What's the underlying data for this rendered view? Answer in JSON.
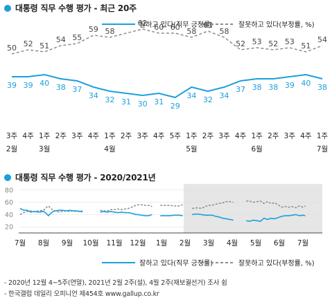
{
  "colors": {
    "approve": "#1a9fdc",
    "disapprove": "#8c8c8c",
    "accent": "#1a9fdc",
    "shade": "#e6e6e6"
  },
  "chart_data": [
    {
      "type": "line",
      "title": "대통령 직무 수행 평가 - 최근 20주",
      "categories": [
        "3주",
        "4주",
        "1주",
        "2주",
        "3주",
        "4주",
        "1주",
        "2주",
        "3주",
        "4주",
        "5주",
        "1주",
        "2주",
        "3주",
        "4주",
        "1주",
        "2주",
        "3주",
        "4주",
        "1주"
      ],
      "month_labels": [
        {
          "index": 0,
          "label": "2월"
        },
        {
          "index": 2,
          "label": "3월"
        },
        {
          "index": 6,
          "label": "4월"
        },
        {
          "index": 11,
          "label": "5월"
        },
        {
          "index": 15,
          "label": "6월"
        },
        {
          "index": 19,
          "label": "7월"
        }
      ],
      "series": [
        {
          "name": "잘하고 있다(직무 긍정률)",
          "values": [
            39,
            39,
            40,
            38,
            37,
            34,
            32,
            31,
            30,
            31,
            29,
            34,
            32,
            34,
            37,
            38,
            38,
            39,
            40,
            38
          ]
        },
        {
          "name": "잘못하고 있다(부정률, %)",
          "values": [
            50,
            52,
            51,
            54,
            55,
            59,
            58,
            null,
            62,
            60,
            60,
            58,
            61,
            58,
            52,
            53,
            52,
            53,
            51,
            54
          ]
        }
      ],
      "ylim": [
        20,
        70
      ],
      "legend": "top-right"
    },
    {
      "type": "line",
      "title": "대통령 직무 수행 평가 - 2020/2021년",
      "x_ticks": [
        "7월",
        "8월",
        "9월",
        "10월",
        "11월",
        "12월",
        "1월",
        "2월",
        "3월",
        "4월",
        "5월",
        "6월",
        "7월"
      ],
      "y_ticks": [
        20,
        40,
        60,
        80
      ],
      "ylim": [
        10,
        90
      ],
      "shaded_from_tick": 7,
      "approve_segments": [
        [
          [
            0,
            50
          ],
          [
            0.15,
            47
          ],
          [
            0.3,
            47
          ],
          [
            0.45,
            44
          ],
          [
            0.6,
            45
          ],
          [
            0.8,
            44
          ],
          [
            1.0,
            45
          ],
          [
            1.1,
            42
          ],
          [
            1.2,
            38
          ],
          [
            1.3,
            42
          ],
          [
            1.4,
            45
          ],
          [
            1.5,
            46
          ],
          [
            1.65,
            47
          ],
          [
            1.8,
            47
          ],
          [
            1.95,
            46
          ],
          [
            2.1,
            47
          ],
          [
            2.25,
            46
          ],
          [
            2.4,
            46
          ],
          [
            2.55,
            45
          ],
          [
            2.65,
            46
          ]
        ],
        [
          [
            3.4,
            44
          ],
          [
            3.55,
            45
          ],
          [
            3.7,
            44
          ],
          [
            3.85,
            45
          ],
          [
            4.0,
            44
          ],
          [
            4.15,
            43
          ],
          [
            4.3,
            44
          ],
          [
            4.45,
            43
          ],
          [
            4.6,
            43
          ],
          [
            4.75,
            42
          ],
          [
            4.9,
            40
          ],
          [
            5.0,
            40
          ],
          [
            5.15,
            39
          ],
          [
            5.3,
            38
          ],
          [
            5.45,
            38
          ],
          [
            5.6,
            40
          ]
        ],
        [
          [
            5.95,
            38
          ],
          [
            6.15,
            38
          ],
          [
            6.35,
            38
          ],
          [
            6.55,
            39
          ],
          [
            6.75,
            39
          ],
          [
            6.9,
            38
          ]
        ],
        [
          [
            7.3,
            40
          ],
          [
            7.5,
            41
          ],
          [
            7.7,
            40
          ],
          [
            7.85,
            39
          ],
          [
            8.0,
            39
          ],
          [
            8.15,
            39
          ],
          [
            8.3,
            37
          ],
          [
            8.45,
            36
          ],
          [
            8.6,
            34
          ],
          [
            8.75,
            33
          ],
          [
            8.9,
            32
          ],
          [
            9.05,
            31
          ]
        ],
        [
          [
            9.6,
            30
          ],
          [
            9.75,
            29
          ],
          [
            9.9,
            31
          ],
          [
            10.05,
            30
          ],
          [
            10.2,
            29
          ],
          [
            10.35,
            34
          ],
          [
            10.5,
            32
          ],
          [
            10.65,
            34
          ],
          [
            10.8,
            33
          ],
          [
            10.95,
            35
          ],
          [
            11.1,
            37
          ],
          [
            11.25,
            38
          ],
          [
            11.4,
            38
          ],
          [
            11.55,
            39
          ],
          [
            11.7,
            40
          ],
          [
            11.85,
            38
          ],
          [
            12.0,
            39
          ],
          [
            12.1,
            38
          ]
        ]
      ],
      "disapprove_segments": [
        [
          [
            0,
            40
          ],
          [
            0.15,
            43
          ],
          [
            0.3,
            45
          ],
          [
            0.45,
            46
          ],
          [
            0.6,
            45
          ],
          [
            0.8,
            46
          ],
          [
            1.0,
            47
          ],
          [
            1.1,
            51
          ],
          [
            1.2,
            54
          ],
          [
            1.3,
            50
          ],
          [
            1.4,
            47
          ],
          [
            1.5,
            46
          ],
          [
            1.65,
            44
          ],
          [
            1.8,
            45
          ],
          [
            1.95,
            46
          ],
          [
            2.1,
            45
          ],
          [
            2.25,
            46
          ],
          [
            2.4,
            45
          ],
          [
            2.55,
            45
          ],
          [
            2.65,
            44
          ]
        ],
        [
          [
            3.4,
            47
          ],
          [
            3.55,
            46
          ],
          [
            3.7,
            46
          ],
          [
            3.85,
            48
          ],
          [
            4.0,
            48
          ],
          [
            4.15,
            49
          ],
          [
            4.3,
            48
          ],
          [
            4.45,
            49
          ],
          [
            4.6,
            50
          ],
          [
            4.75,
            52
          ],
          [
            4.9,
            55
          ],
          [
            5.0,
            56
          ],
          [
            5.15,
            56
          ],
          [
            5.3,
            55
          ],
          [
            5.45,
            55
          ],
          [
            5.6,
            53
          ]
        ],
        [
          [
            5.95,
            55
          ],
          [
            6.15,
            55
          ],
          [
            6.35,
            55
          ],
          [
            6.55,
            54
          ],
          [
            6.75,
            54
          ],
          [
            6.9,
            56
          ]
        ],
        [
          [
            7.3,
            50
          ],
          [
            7.5,
            51
          ],
          [
            7.7,
            50
          ],
          [
            7.85,
            53
          ],
          [
            8.0,
            55
          ],
          [
            8.15,
            55
          ],
          [
            8.3,
            57
          ],
          [
            8.45,
            58
          ],
          [
            8.6,
            59
          ],
          [
            8.75,
            61
          ],
          [
            8.9,
            61
          ],
          [
            9.05,
            60
          ]
        ],
        [
          [
            9.6,
            62
          ],
          [
            9.75,
            62
          ],
          [
            9.9,
            60
          ],
          [
            10.05,
            61
          ],
          [
            10.2,
            62
          ],
          [
            10.35,
            58
          ],
          [
            10.5,
            61
          ],
          [
            10.65,
            58
          ],
          [
            10.8,
            59
          ],
          [
            10.95,
            56
          ],
          [
            11.1,
            52
          ],
          [
            11.25,
            53
          ],
          [
            11.4,
            52
          ],
          [
            11.55,
            53
          ],
          [
            11.7,
            51
          ],
          [
            11.85,
            54
          ],
          [
            12.0,
            52
          ],
          [
            12.1,
            54
          ]
        ]
      ]
    }
  ],
  "legend": {
    "approve": "잘하고 있다(직무 긍정률)",
    "disapprove": "잘못하고 있다(부정률, %)"
  },
  "footnotes": [
    "- 2020년 12월 4~5주(연말), 2021년 2월 2주(설), 4월 2주(재보궐선거) 조사 쉼",
    "- 한국갤럽 데일리 오피니언 제454호 www.gallup.co.kr"
  ]
}
